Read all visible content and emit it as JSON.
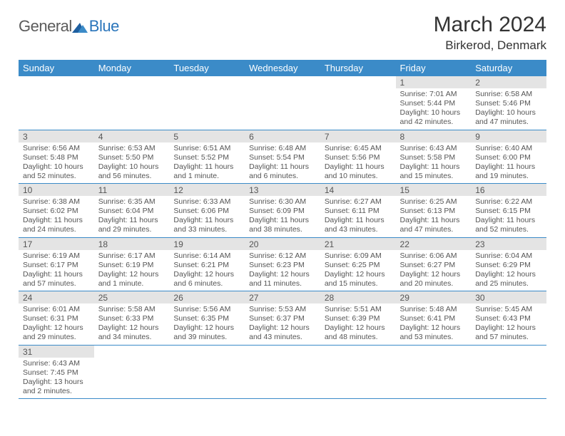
{
  "logo": {
    "general": "General",
    "blue": "Blue"
  },
  "title": {
    "month": "March 2024",
    "location": "Birkerod, Denmark"
  },
  "colors": {
    "header_bg": "#3b8bc8",
    "header_text": "#ffffff",
    "daynum_bg": "#e4e4e4",
    "text": "#555555",
    "row_border": "#3b8bc8"
  },
  "weekdays": [
    "Sunday",
    "Monday",
    "Tuesday",
    "Wednesday",
    "Thursday",
    "Friday",
    "Saturday"
  ],
  "weeks": [
    [
      {
        "empty": true
      },
      {
        "empty": true
      },
      {
        "empty": true
      },
      {
        "empty": true
      },
      {
        "empty": true
      },
      {
        "num": "1",
        "sunrise": "Sunrise: 7:01 AM",
        "sunset": "Sunset: 5:44 PM",
        "daylight": "Daylight: 10 hours and 42 minutes."
      },
      {
        "num": "2",
        "sunrise": "Sunrise: 6:58 AM",
        "sunset": "Sunset: 5:46 PM",
        "daylight": "Daylight: 10 hours and 47 minutes."
      }
    ],
    [
      {
        "num": "3",
        "sunrise": "Sunrise: 6:56 AM",
        "sunset": "Sunset: 5:48 PM",
        "daylight": "Daylight: 10 hours and 52 minutes."
      },
      {
        "num": "4",
        "sunrise": "Sunrise: 6:53 AM",
        "sunset": "Sunset: 5:50 PM",
        "daylight": "Daylight: 10 hours and 56 minutes."
      },
      {
        "num": "5",
        "sunrise": "Sunrise: 6:51 AM",
        "sunset": "Sunset: 5:52 PM",
        "daylight": "Daylight: 11 hours and 1 minute."
      },
      {
        "num": "6",
        "sunrise": "Sunrise: 6:48 AM",
        "sunset": "Sunset: 5:54 PM",
        "daylight": "Daylight: 11 hours and 6 minutes."
      },
      {
        "num": "7",
        "sunrise": "Sunrise: 6:45 AM",
        "sunset": "Sunset: 5:56 PM",
        "daylight": "Daylight: 11 hours and 10 minutes."
      },
      {
        "num": "8",
        "sunrise": "Sunrise: 6:43 AM",
        "sunset": "Sunset: 5:58 PM",
        "daylight": "Daylight: 11 hours and 15 minutes."
      },
      {
        "num": "9",
        "sunrise": "Sunrise: 6:40 AM",
        "sunset": "Sunset: 6:00 PM",
        "daylight": "Daylight: 11 hours and 19 minutes."
      }
    ],
    [
      {
        "num": "10",
        "sunrise": "Sunrise: 6:38 AM",
        "sunset": "Sunset: 6:02 PM",
        "daylight": "Daylight: 11 hours and 24 minutes."
      },
      {
        "num": "11",
        "sunrise": "Sunrise: 6:35 AM",
        "sunset": "Sunset: 6:04 PM",
        "daylight": "Daylight: 11 hours and 29 minutes."
      },
      {
        "num": "12",
        "sunrise": "Sunrise: 6:33 AM",
        "sunset": "Sunset: 6:06 PM",
        "daylight": "Daylight: 11 hours and 33 minutes."
      },
      {
        "num": "13",
        "sunrise": "Sunrise: 6:30 AM",
        "sunset": "Sunset: 6:09 PM",
        "daylight": "Daylight: 11 hours and 38 minutes."
      },
      {
        "num": "14",
        "sunrise": "Sunrise: 6:27 AM",
        "sunset": "Sunset: 6:11 PM",
        "daylight": "Daylight: 11 hours and 43 minutes."
      },
      {
        "num": "15",
        "sunrise": "Sunrise: 6:25 AM",
        "sunset": "Sunset: 6:13 PM",
        "daylight": "Daylight: 11 hours and 47 minutes."
      },
      {
        "num": "16",
        "sunrise": "Sunrise: 6:22 AM",
        "sunset": "Sunset: 6:15 PM",
        "daylight": "Daylight: 11 hours and 52 minutes."
      }
    ],
    [
      {
        "num": "17",
        "sunrise": "Sunrise: 6:19 AM",
        "sunset": "Sunset: 6:17 PM",
        "daylight": "Daylight: 11 hours and 57 minutes."
      },
      {
        "num": "18",
        "sunrise": "Sunrise: 6:17 AM",
        "sunset": "Sunset: 6:19 PM",
        "daylight": "Daylight: 12 hours and 1 minute."
      },
      {
        "num": "19",
        "sunrise": "Sunrise: 6:14 AM",
        "sunset": "Sunset: 6:21 PM",
        "daylight": "Daylight: 12 hours and 6 minutes."
      },
      {
        "num": "20",
        "sunrise": "Sunrise: 6:12 AM",
        "sunset": "Sunset: 6:23 PM",
        "daylight": "Daylight: 12 hours and 11 minutes."
      },
      {
        "num": "21",
        "sunrise": "Sunrise: 6:09 AM",
        "sunset": "Sunset: 6:25 PM",
        "daylight": "Daylight: 12 hours and 15 minutes."
      },
      {
        "num": "22",
        "sunrise": "Sunrise: 6:06 AM",
        "sunset": "Sunset: 6:27 PM",
        "daylight": "Daylight: 12 hours and 20 minutes."
      },
      {
        "num": "23",
        "sunrise": "Sunrise: 6:04 AM",
        "sunset": "Sunset: 6:29 PM",
        "daylight": "Daylight: 12 hours and 25 minutes."
      }
    ],
    [
      {
        "num": "24",
        "sunrise": "Sunrise: 6:01 AM",
        "sunset": "Sunset: 6:31 PM",
        "daylight": "Daylight: 12 hours and 29 minutes."
      },
      {
        "num": "25",
        "sunrise": "Sunrise: 5:58 AM",
        "sunset": "Sunset: 6:33 PM",
        "daylight": "Daylight: 12 hours and 34 minutes."
      },
      {
        "num": "26",
        "sunrise": "Sunrise: 5:56 AM",
        "sunset": "Sunset: 6:35 PM",
        "daylight": "Daylight: 12 hours and 39 minutes."
      },
      {
        "num": "27",
        "sunrise": "Sunrise: 5:53 AM",
        "sunset": "Sunset: 6:37 PM",
        "daylight": "Daylight: 12 hours and 43 minutes."
      },
      {
        "num": "28",
        "sunrise": "Sunrise: 5:51 AM",
        "sunset": "Sunset: 6:39 PM",
        "daylight": "Daylight: 12 hours and 48 minutes."
      },
      {
        "num": "29",
        "sunrise": "Sunrise: 5:48 AM",
        "sunset": "Sunset: 6:41 PM",
        "daylight": "Daylight: 12 hours and 53 minutes."
      },
      {
        "num": "30",
        "sunrise": "Sunrise: 5:45 AM",
        "sunset": "Sunset: 6:43 PM",
        "daylight": "Daylight: 12 hours and 57 minutes."
      }
    ],
    [
      {
        "num": "31",
        "sunrise": "Sunrise: 6:43 AM",
        "sunset": "Sunset: 7:45 PM",
        "daylight": "Daylight: 13 hours and 2 minutes."
      },
      {
        "empty": true
      },
      {
        "empty": true
      },
      {
        "empty": true
      },
      {
        "empty": true
      },
      {
        "empty": true
      },
      {
        "empty": true
      }
    ]
  ]
}
